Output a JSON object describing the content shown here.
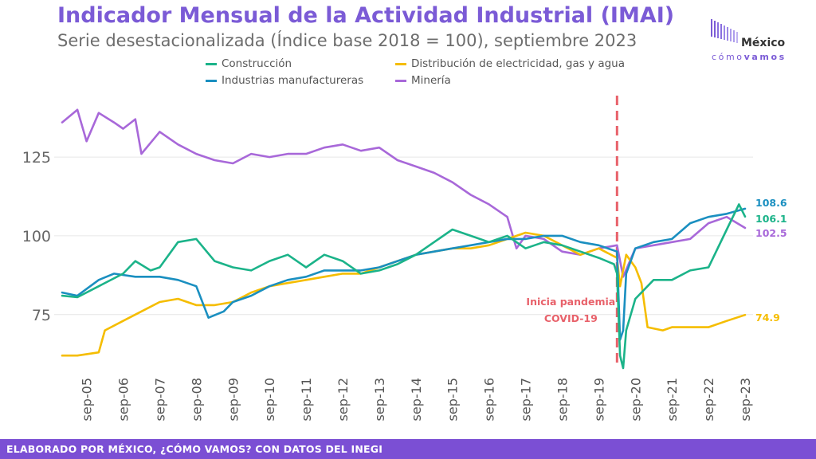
{
  "header": {
    "title": "Indicador Mensual de la Actividad Industrial (IMAI)",
    "subtitle": "Serie desestacionalizada (Índice base 2018 = 100), septiembre 2023"
  },
  "logo": {
    "line1": "México",
    "line2_light": "cómo",
    "line2_bold": "vamos"
  },
  "footer": {
    "text": "ELABORADO POR MÉXICO, ¿CÓMO VAMOS? CON DATOS DEL INEGI"
  },
  "colors": {
    "construccion": "#1BB389",
    "distribucion": "#F5BD00",
    "manufactureras": "#1A8FC0",
    "mineria": "#A868D9",
    "pandemic_line": "#E8616A",
    "title": "#7B5BD6"
  },
  "chart_data": {
    "type": "line",
    "ylim": [
      58,
      145
    ],
    "yticks": [
      75,
      100,
      125
    ],
    "grid": true,
    "legend_position": "top",
    "xticks": [
      "sep-05",
      "sep-06",
      "sep-07",
      "sep-08",
      "sep-09",
      "sep-10",
      "sep-11",
      "sep-12",
      "sep-13",
      "sep-14",
      "sep-15",
      "sep-16",
      "sep-17",
      "sep-18",
      "sep-19",
      "sep-20",
      "sep-21",
      "sep-22",
      "sep-23"
    ],
    "x_start": "2005-01",
    "x_end": "2023-09",
    "annotation": {
      "date": "2020-03",
      "line1": "Inicia pandemia",
      "line2": "COVID-19"
    },
    "series": [
      {
        "key": "construccion",
        "name": "Construcción",
        "end_label": "106.1",
        "points": [
          [
            "2005-01",
            81
          ],
          [
            "2005-06",
            80.5
          ],
          [
            "2006-01",
            84
          ],
          [
            "2006-09",
            88
          ],
          [
            "2007-01",
            92
          ],
          [
            "2007-06",
            89
          ],
          [
            "2007-09",
            90
          ],
          [
            "2008-03",
            98
          ],
          [
            "2008-09",
            99
          ],
          [
            "2009-03",
            92
          ],
          [
            "2009-09",
            90
          ],
          [
            "2010-03",
            89
          ],
          [
            "2010-09",
            92
          ],
          [
            "2011-03",
            94
          ],
          [
            "2011-09",
            90
          ],
          [
            "2012-03",
            94
          ],
          [
            "2012-09",
            92
          ],
          [
            "2013-03",
            88
          ],
          [
            "2013-09",
            89
          ],
          [
            "2014-03",
            91
          ],
          [
            "2014-09",
            94
          ],
          [
            "2015-03",
            98
          ],
          [
            "2015-09",
            102
          ],
          [
            "2016-03",
            100
          ],
          [
            "2016-09",
            98
          ],
          [
            "2017-03",
            100
          ],
          [
            "2017-09",
            96
          ],
          [
            "2018-03",
            98
          ],
          [
            "2018-09",
            97
          ],
          [
            "2019-03",
            95
          ],
          [
            "2019-09",
            93
          ],
          [
            "2020-02",
            91
          ],
          [
            "2020-03",
            88
          ],
          [
            "2020-04",
            62
          ],
          [
            "2020-05",
            58
          ],
          [
            "2020-06",
            70
          ],
          [
            "2020-09",
            80
          ],
          [
            "2021-03",
            86
          ],
          [
            "2021-09",
            86
          ],
          [
            "2022-03",
            89
          ],
          [
            "2022-09",
            90
          ],
          [
            "2023-03",
            102
          ],
          [
            "2023-07",
            110
          ],
          [
            "2023-09",
            106.1
          ]
        ]
      },
      {
        "key": "distribucion",
        "name": "Distribución de electricidad, gas y agua",
        "end_label": "74.9",
        "points": [
          [
            "2005-01",
            62
          ],
          [
            "2005-06",
            62
          ],
          [
            "2006-01",
            63
          ],
          [
            "2006-03",
            70
          ],
          [
            "2006-09",
            73
          ],
          [
            "2007-03",
            76
          ],
          [
            "2007-09",
            79
          ],
          [
            "2008-03",
            80
          ],
          [
            "2008-09",
            78
          ],
          [
            "2009-03",
            78
          ],
          [
            "2009-09",
            79
          ],
          [
            "2010-03",
            82
          ],
          [
            "2010-09",
            84
          ],
          [
            "2011-03",
            85
          ],
          [
            "2011-09",
            86
          ],
          [
            "2012-03",
            87
          ],
          [
            "2012-09",
            88
          ],
          [
            "2013-03",
            88
          ],
          [
            "2013-09",
            90
          ],
          [
            "2014-03",
            92
          ],
          [
            "2014-09",
            94
          ],
          [
            "2015-03",
            95
          ],
          [
            "2015-09",
            96
          ],
          [
            "2016-03",
            96
          ],
          [
            "2016-09",
            97
          ],
          [
            "2017-03",
            99
          ],
          [
            "2017-09",
            101
          ],
          [
            "2018-03",
            100
          ],
          [
            "2018-09",
            97
          ],
          [
            "2019-03",
            94
          ],
          [
            "2019-09",
            96
          ],
          [
            "2020-03",
            93
          ],
          [
            "2020-04",
            84
          ],
          [
            "2020-06",
            94
          ],
          [
            "2020-09",
            90
          ],
          [
            "2020-11",
            85
          ],
          [
            "2021-01",
            71
          ],
          [
            "2021-06",
            70
          ],
          [
            "2021-09",
            71
          ],
          [
            "2022-03",
            71
          ],
          [
            "2022-09",
            71
          ],
          [
            "2023-03",
            73
          ],
          [
            "2023-09",
            74.9
          ]
        ]
      },
      {
        "key": "manufactureras",
        "name": "Industrias manufactureras",
        "end_label": "108.6",
        "points": [
          [
            "2005-01",
            82
          ],
          [
            "2005-06",
            81
          ],
          [
            "2006-01",
            86
          ],
          [
            "2006-06",
            88
          ],
          [
            "2007-01",
            87
          ],
          [
            "2007-09",
            87
          ],
          [
            "2008-03",
            86
          ],
          [
            "2008-09",
            84
          ],
          [
            "2009-01",
            74
          ],
          [
            "2009-06",
            76
          ],
          [
            "2009-09",
            79
          ],
          [
            "2010-03",
            81
          ],
          [
            "2010-09",
            84
          ],
          [
            "2011-03",
            86
          ],
          [
            "2011-09",
            87
          ],
          [
            "2012-03",
            89
          ],
          [
            "2012-09",
            89
          ],
          [
            "2013-03",
            89
          ],
          [
            "2013-09",
            90
          ],
          [
            "2014-03",
            92
          ],
          [
            "2014-09",
            94
          ],
          [
            "2015-03",
            95
          ],
          [
            "2015-09",
            96
          ],
          [
            "2016-03",
            97
          ],
          [
            "2016-09",
            98
          ],
          [
            "2017-03",
            99
          ],
          [
            "2017-09",
            99
          ],
          [
            "2018-03",
            100
          ],
          [
            "2018-09",
            100
          ],
          [
            "2019-03",
            98
          ],
          [
            "2019-09",
            97
          ],
          [
            "2020-03",
            95
          ],
          [
            "2020-04",
            67
          ],
          [
            "2020-05",
            70
          ],
          [
            "2020-06",
            88
          ],
          [
            "2020-09",
            96
          ],
          [
            "2021-03",
            98
          ],
          [
            "2021-09",
            99
          ],
          [
            "2022-03",
            104
          ],
          [
            "2022-09",
            106
          ],
          [
            "2023-03",
            107
          ],
          [
            "2023-09",
            108.6
          ]
        ]
      },
      {
        "key": "mineria",
        "name": "Minería",
        "end_label": "102.5",
        "points": [
          [
            "2005-01",
            136
          ],
          [
            "2005-06",
            140
          ],
          [
            "2005-09",
            130
          ],
          [
            "2006-01",
            139
          ],
          [
            "2006-06",
            136
          ],
          [
            "2006-09",
            134
          ],
          [
            "2007-01",
            137
          ],
          [
            "2007-03",
            126
          ],
          [
            "2007-09",
            133
          ],
          [
            "2008-03",
            129
          ],
          [
            "2008-09",
            126
          ],
          [
            "2009-03",
            124
          ],
          [
            "2009-09",
            123
          ],
          [
            "2010-03",
            126
          ],
          [
            "2010-09",
            125
          ],
          [
            "2011-03",
            126
          ],
          [
            "2011-09",
            126
          ],
          [
            "2012-03",
            128
          ],
          [
            "2012-09",
            129
          ],
          [
            "2013-03",
            127
          ],
          [
            "2013-09",
            128
          ],
          [
            "2014-03",
            124
          ],
          [
            "2014-09",
            122
          ],
          [
            "2015-03",
            120
          ],
          [
            "2015-09",
            117
          ],
          [
            "2016-03",
            113
          ],
          [
            "2016-09",
            110
          ],
          [
            "2017-03",
            106
          ],
          [
            "2017-06",
            96
          ],
          [
            "2017-09",
            100
          ],
          [
            "2018-03",
            99
          ],
          [
            "2018-09",
            95
          ],
          [
            "2019-03",
            94
          ],
          [
            "2019-09",
            96
          ],
          [
            "2020-03",
            97
          ],
          [
            "2020-05",
            87
          ],
          [
            "2020-09",
            96
          ],
          [
            "2021-03",
            97
          ],
          [
            "2021-09",
            98
          ],
          [
            "2022-03",
            99
          ],
          [
            "2022-09",
            104
          ],
          [
            "2023-03",
            106
          ],
          [
            "2023-09",
            102.5
          ]
        ]
      }
    ]
  }
}
